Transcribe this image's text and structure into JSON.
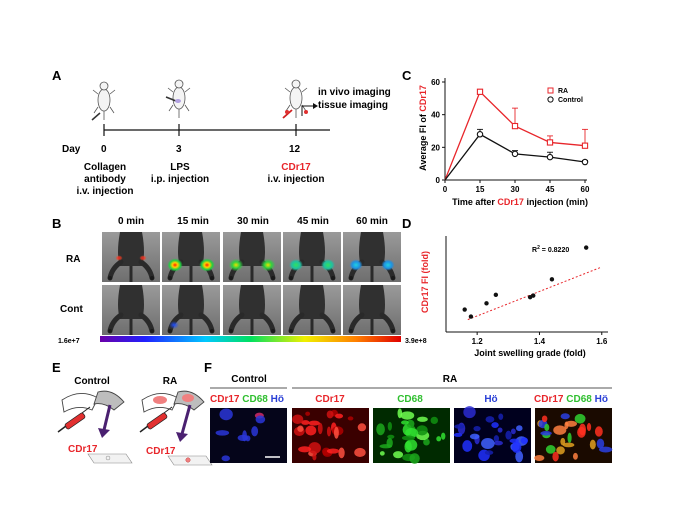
{
  "panels": {
    "A": "A",
    "B": "B",
    "C": "C",
    "D": "D",
    "E": "E",
    "F": "F"
  },
  "timeline": {
    "day_label": "Day",
    "days": [
      "0",
      "3",
      "12"
    ],
    "events": [
      {
        "lines": [
          "Collagen",
          "antibody",
          "i.v. injection"
        ]
      },
      {
        "lines": [
          "LPS",
          "i.p. injection"
        ]
      },
      {
        "lines": [
          "CDr17",
          "i.v. injection"
        ]
      }
    ],
    "outcomes": [
      "in vivo imaging",
      "tissue imaging"
    ]
  },
  "imaging": {
    "times": [
      "0 min",
      "15 min",
      "30 min",
      "45 min",
      "60 min"
    ],
    "rows": [
      "RA",
      "Cont"
    ],
    "scale_min": "1.6e+7",
    "scale_max": "3.9e+8"
  },
  "chart_c": {
    "ylabel_prefix": "Average FI of ",
    "ylabel_probe": "CDr17",
    "xlabel_prefix": "Time after ",
    "xlabel_probe": "CDr17",
    "xlabel_suffix": " injection (min)",
    "x_ticks": [
      "0",
      "15",
      "30",
      "45",
      "60"
    ],
    "y_ticks": [
      "0",
      "20",
      "40",
      "60"
    ],
    "legend": [
      "RA",
      "Control"
    ]
  },
  "chart_d": {
    "ylabel": "CDr17 FI (fold)",
    "xlabel": "Joint swelling grade (fold)",
    "x_ticks": [
      "1.2",
      "1.4",
      "1.6"
    ],
    "r2_prefix": "R",
    "r2_sup": "2",
    "r2_suffix": " = 0.8220"
  },
  "schematic_e": {
    "groups": [
      "Control",
      "RA"
    ],
    "probe": "CDr17"
  },
  "micro_f": {
    "group_control": "Control",
    "group_ra": "RA",
    "ch_cdr17": "CDr17",
    "ch_cd68": "CD68",
    "ch_ho": "Hö"
  },
  "chart_data": [
    {
      "type": "line",
      "x": [
        0,
        15,
        30,
        45,
        60
      ],
      "series": [
        {
          "name": "RA",
          "values": [
            0,
            54,
            33,
            23,
            21
          ],
          "errors": [
            0,
            1.5,
            11,
            4,
            10
          ],
          "color": "#e8262b",
          "marker": "square"
        },
        {
          "name": "Control",
          "values": [
            0,
            28,
            16,
            14,
            11
          ],
          "errors": [
            0,
            3,
            2,
            3,
            1
          ],
          "color": "#111111",
          "marker": "circle"
        }
      ],
      "xlim": [
        0,
        60
      ],
      "ylim": [
        0,
        60
      ],
      "grid": false,
      "legend_position": "top-right"
    },
    {
      "type": "scatter",
      "points": [
        [
          1.16,
          1.45
        ],
        [
          1.18,
          1.0
        ],
        [
          1.23,
          1.85
        ],
        [
          1.26,
          2.4
        ],
        [
          1.37,
          2.25
        ],
        [
          1.38,
          2.35
        ],
        [
          1.44,
          3.4
        ],
        [
          1.55,
          5.45
        ]
      ],
      "fit_line": [
        [
          1.17,
          0.8
        ],
        [
          1.6,
          4.2
        ]
      ],
      "xlim": [
        1.1,
        1.62
      ],
      "ylim": [
        0,
        6.2
      ],
      "grid": false
    }
  ],
  "colors": {
    "ra": "#e8262b",
    "cd68": "#2fbf2f",
    "hoechst": "#2a3fd6",
    "axis": "#111111"
  }
}
